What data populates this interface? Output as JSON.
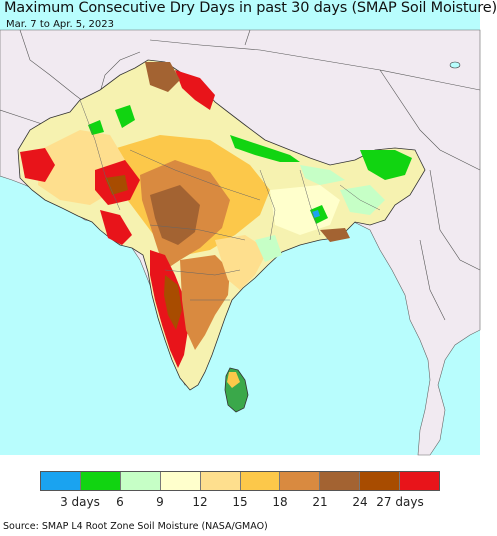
{
  "header": {
    "title": "Maximum Consecutive Dry Days in past 30 days (SMAP Soil Moisture)",
    "subtitle": "Mar. 7 to Apr. 5, 2023"
  },
  "legend": {
    "colors": [
      "#1aa3f0",
      "#11d411",
      "#c6ffc6",
      "#ffffcc",
      "#fedf8e",
      "#fcc84a",
      "#d98a40",
      "#a36332",
      "#a84c00",
      "#e8141a"
    ],
    "labels": [
      "3 days",
      "6",
      "9",
      "12",
      "15",
      "18",
      "21",
      "24",
      "27 days"
    ]
  },
  "footer": {
    "source": "Source: SMAP L4 Root Zone Soil Moisture (NASA/GMAO)"
  },
  "map_colors": {
    "ocean": "#b8fdfd",
    "land_outside": "#f1eaf1",
    "border": "#333333"
  }
}
